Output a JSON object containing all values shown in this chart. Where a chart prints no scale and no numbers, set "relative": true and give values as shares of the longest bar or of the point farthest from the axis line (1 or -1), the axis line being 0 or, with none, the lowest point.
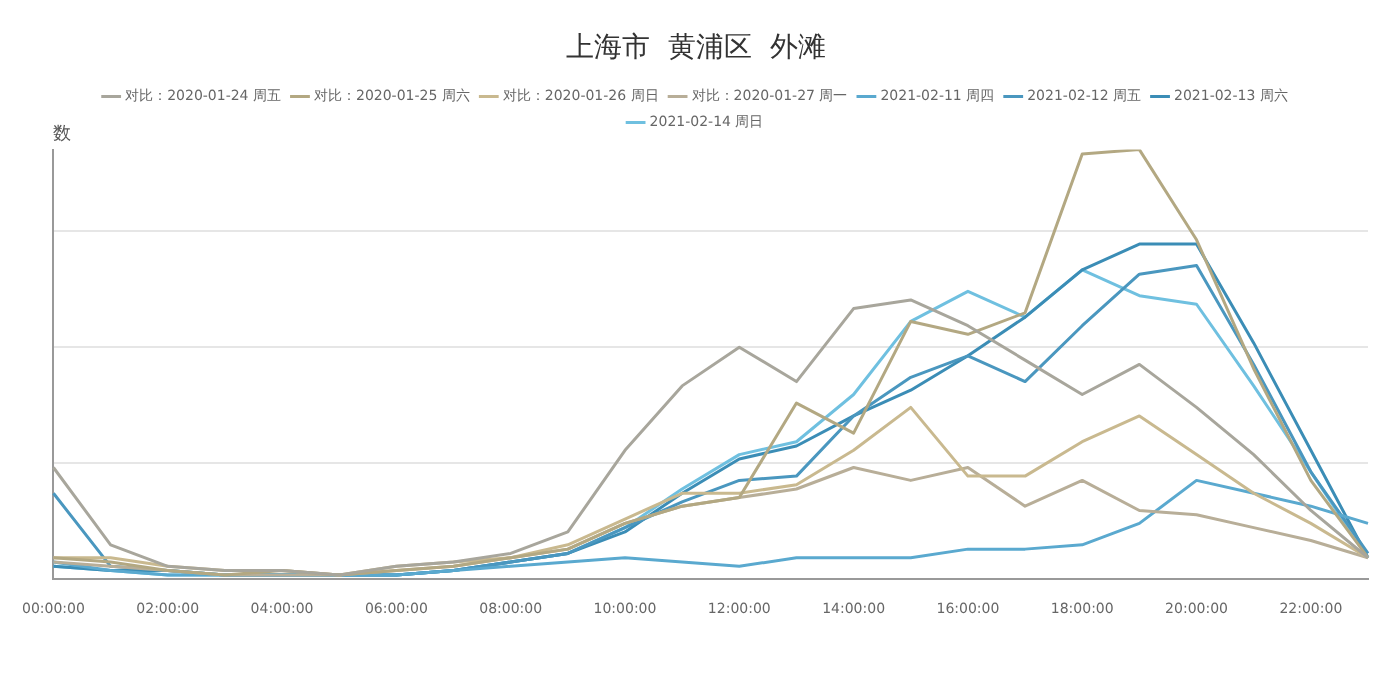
{
  "chart_data": {
    "type": "line",
    "title": "上海市  黄浦区  外滩",
    "ylabel": "数",
    "relative": true,
    "grid": "y",
    "legend": "top",
    "marker": "none",
    "line_style": "solid",
    "categories": [
      "00:00:00",
      null,
      "02:00:00",
      null,
      "04:00:00",
      null,
      "06:00:00",
      null,
      "08:00:00",
      null,
      "10:00:00",
      null,
      "12:00:00",
      null,
      "14:00:00",
      null,
      "16:00:00",
      null,
      "18:00:00",
      null,
      "20:00:00",
      null,
      "22:00:00",
      null
    ],
    "series": [
      {
        "name": "对比：2020-01-24 周五",
        "color": "#a8a69c",
        "values": [
          0.26,
          0.08,
          0.03,
          0.02,
          0.02,
          0.01,
          0.03,
          0.04,
          0.06,
          0.11,
          0.3,
          0.45,
          0.54,
          0.46,
          0.63,
          0.65,
          0.59,
          0.51,
          0.43,
          0.5,
          0.4,
          0.29,
          0.16,
          0.05
        ]
      },
      {
        "name": "对比：2020-01-25 周六",
        "color": "#b3a882",
        "values": [
          0.05,
          0.04,
          0.02,
          0.01,
          0.02,
          0.01,
          0.02,
          0.03,
          0.05,
          0.07,
          0.13,
          0.17,
          0.19,
          0.41,
          0.34,
          0.6,
          0.57,
          0.62,
          0.99,
          1.0,
          0.79,
          0.49,
          0.23,
          0.05
        ]
      },
      {
        "name": "对比：2020-01-26 周日",
        "color": "#c9b98f",
        "values": [
          0.05,
          0.05,
          0.03,
          0.02,
          0.02,
          0.01,
          0.03,
          0.04,
          0.05,
          0.08,
          0.14,
          0.2,
          0.2,
          0.22,
          0.3,
          0.4,
          0.24,
          0.24,
          0.32,
          0.38,
          0.29,
          0.2,
          0.13,
          0.05
        ]
      },
      {
        "name": "对比：2020-01-27 周一",
        "color": "#b8ae98",
        "values": [
          0.04,
          0.03,
          0.02,
          0.01,
          0.01,
          0.01,
          0.02,
          0.03,
          0.05,
          0.07,
          0.13,
          0.17,
          0.19,
          0.21,
          0.26,
          0.23,
          0.26,
          0.17,
          0.23,
          0.16,
          0.15,
          0.12,
          0.09,
          0.05
        ]
      },
      {
        "name": "2021-02-11 周四",
        "color": "#5aa9cf",
        "values": [
          0.04,
          0.02,
          0.01,
          0.01,
          0.01,
          0.01,
          0.01,
          0.02,
          0.03,
          0.04,
          0.05,
          0.04,
          0.03,
          0.05,
          0.05,
          0.05,
          0.07,
          0.07,
          0.08,
          0.13,
          0.23,
          0.2,
          0.17,
          0.13
        ]
      },
      {
        "name": "2021-02-12 周五",
        "color": "#4a97bf",
        "values": [
          0.2,
          0.03,
          0.02,
          0.01,
          0.01,
          0.01,
          0.01,
          0.02,
          0.04,
          0.06,
          0.12,
          0.18,
          0.23,
          0.24,
          0.38,
          0.47,
          0.52,
          0.46,
          0.59,
          0.71,
          0.73,
          0.5,
          0.25,
          0.06
        ]
      },
      {
        "name": "2021-02-13 周六",
        "color": "#3b8db6",
        "values": [
          0.03,
          0.02,
          0.02,
          0.01,
          0.01,
          0.01,
          0.01,
          0.02,
          0.04,
          0.06,
          0.11,
          0.2,
          0.28,
          0.31,
          0.38,
          0.44,
          0.52,
          0.61,
          0.72,
          0.78,
          0.78,
          0.55,
          0.3,
          0.05
        ]
      },
      {
        "name": "2021-02-14 周日",
        "color": "#6fc0e0",
        "values": [
          0.03,
          0.02,
          0.01,
          0.01,
          0.01,
          0.01,
          0.01,
          0.02,
          0.04,
          0.06,
          0.12,
          0.21,
          0.29,
          0.32,
          0.43,
          0.6,
          0.67,
          0.61,
          0.72,
          0.66,
          0.64,
          0.45,
          0.25,
          0.05
        ]
      }
    ]
  }
}
